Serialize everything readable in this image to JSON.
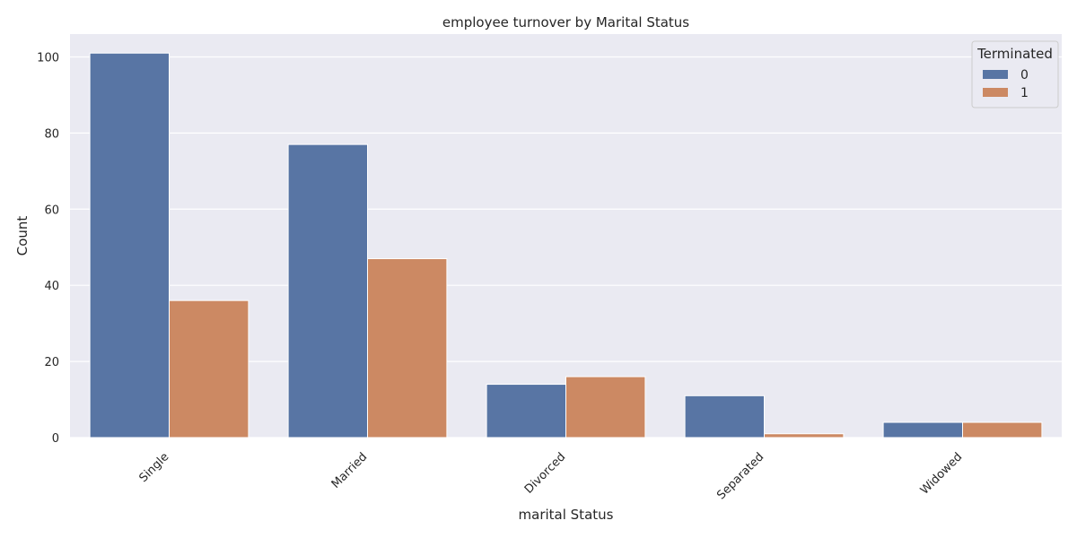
{
  "chart_data": {
    "type": "bar",
    "title": "employee turnover by Marital Status",
    "xlabel": "marital Status",
    "ylabel": "Count",
    "categories": [
      "Single",
      "Married",
      "Divorced",
      "Separated",
      "Widowed"
    ],
    "series": [
      {
        "name": "0",
        "values": [
          101,
          77,
          14,
          11,
          4
        ],
        "color": "#5875a4"
      },
      {
        "name": "1",
        "values": [
          36,
          47,
          16,
          1,
          4
        ],
        "color": "#cc8963"
      }
    ],
    "ylim": [
      0,
      106
    ],
    "yticks": [
      0,
      20,
      40,
      60,
      80,
      100
    ],
    "legend": {
      "title": "Terminated",
      "placement": "top-right"
    },
    "grid": true,
    "background_color": "#eaeaf2",
    "grid_color": "#ffffff"
  }
}
